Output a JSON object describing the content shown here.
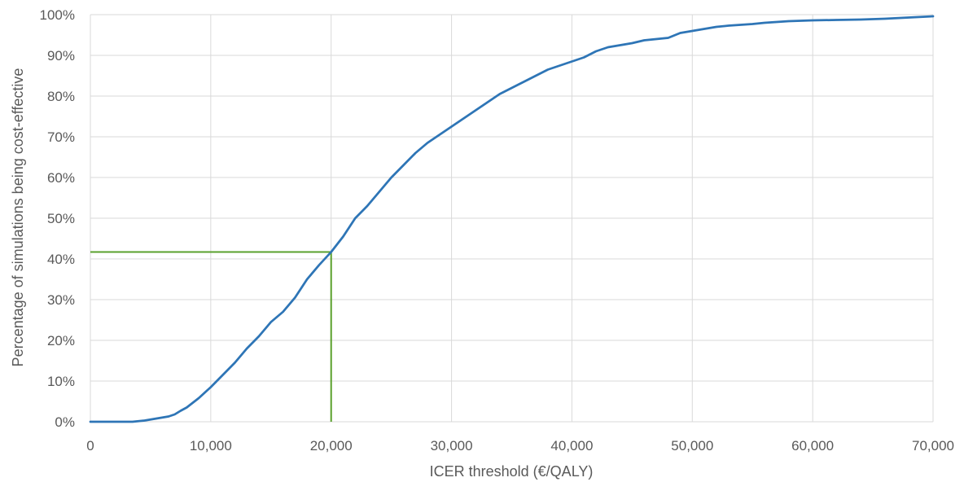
{
  "chart_data": {
    "type": "line",
    "title": "",
    "xlabel": "ICER threshold (€/QALY)",
    "ylabel": "Percentage of simulations being  cost-effective",
    "xlim": [
      0,
      70000
    ],
    "ylim": [
      0,
      100
    ],
    "x_ticks": [
      0,
      10000,
      20000,
      30000,
      40000,
      50000,
      60000,
      70000
    ],
    "x_tick_labels": [
      "0",
      "10,000",
      "20,000",
      "30,000",
      "40,000",
      "50,000",
      "60,000",
      "70,000"
    ],
    "y_ticks": [
      0,
      10,
      20,
      30,
      40,
      50,
      60,
      70,
      80,
      90,
      100
    ],
    "y_tick_labels": [
      "0%",
      "10%",
      "20%",
      "30%",
      "40%",
      "50%",
      "60%",
      "70%",
      "80%",
      "90%",
      "100%"
    ],
    "grid": "both",
    "legend": "none",
    "series": [
      {
        "color": "#2e75b6",
        "points": [
          [
            0,
            0
          ],
          [
            3500,
            0
          ],
          [
            4500,
            0.3
          ],
          [
            5500,
            0.8
          ],
          [
            6500,
            1.3
          ],
          [
            7000,
            1.8
          ],
          [
            7500,
            2.7
          ],
          [
            8000,
            3.5
          ],
          [
            9000,
            5.8
          ],
          [
            10000,
            8.5
          ],
          [
            11000,
            11.5
          ],
          [
            12000,
            14.5
          ],
          [
            13000,
            18
          ],
          [
            14000,
            21
          ],
          [
            15000,
            24.5
          ],
          [
            16000,
            27
          ],
          [
            17000,
            30.5
          ],
          [
            18000,
            35
          ],
          [
            19000,
            38.5
          ],
          [
            20000,
            41.7
          ],
          [
            21000,
            45.5
          ],
          [
            22000,
            50
          ],
          [
            23000,
            53
          ],
          [
            24000,
            56.5
          ],
          [
            25000,
            60
          ],
          [
            26000,
            63
          ],
          [
            27000,
            66
          ],
          [
            28000,
            68.5
          ],
          [
            29000,
            70.5
          ],
          [
            30000,
            72.5
          ],
          [
            31000,
            74.5
          ],
          [
            32000,
            76.5
          ],
          [
            33000,
            78.5
          ],
          [
            34000,
            80.5
          ],
          [
            35000,
            82
          ],
          [
            36000,
            83.5
          ],
          [
            37000,
            85
          ],
          [
            38000,
            86.5
          ],
          [
            39000,
            87.5
          ],
          [
            40000,
            88.5
          ],
          [
            41000,
            89.5
          ],
          [
            42000,
            91
          ],
          [
            43000,
            92
          ],
          [
            44000,
            92.5
          ],
          [
            45000,
            93
          ],
          [
            46000,
            93.7
          ],
          [
            47000,
            94
          ],
          [
            48000,
            94.3
          ],
          [
            49000,
            95.5
          ],
          [
            50000,
            96
          ],
          [
            51000,
            96.5
          ],
          [
            52000,
            97
          ],
          [
            53000,
            97.3
          ],
          [
            54000,
            97.5
          ],
          [
            55000,
            97.7
          ],
          [
            56000,
            98
          ],
          [
            57000,
            98.2
          ],
          [
            58000,
            98.4
          ],
          [
            59000,
            98.5
          ],
          [
            60000,
            98.6
          ],
          [
            62000,
            98.7
          ],
          [
            64000,
            98.8
          ],
          [
            66000,
            99
          ],
          [
            68000,
            99.3
          ],
          [
            70000,
            99.6
          ]
        ]
      }
    ],
    "reference_lines": {
      "color": "#5aa02c",
      "x": 20000,
      "y": 41.7
    }
  }
}
